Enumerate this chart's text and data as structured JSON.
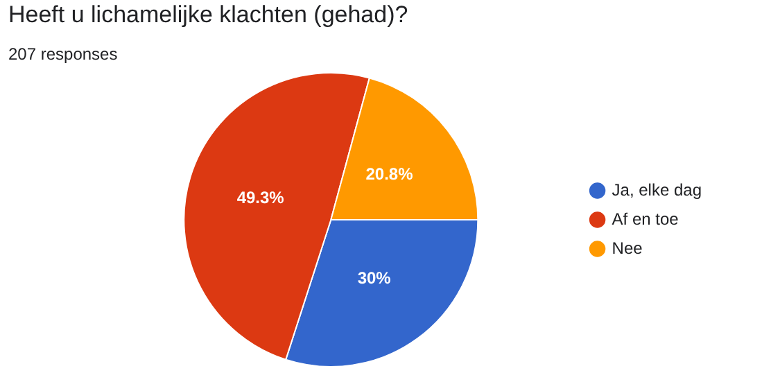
{
  "chart_data": {
    "type": "pie",
    "title": "Heeft u lichamelijke klachten (gehad)?",
    "subtitle": "207 responses",
    "categories": [
      "Ja, elke dag",
      "Af en toe",
      "Nee"
    ],
    "values": [
      30,
      49.3,
      20.8
    ],
    "colors": [
      "#3366cc",
      "#dc3912",
      "#ff9900"
    ],
    "value_labels": [
      "30%",
      "49.3%",
      "20.8%"
    ],
    "legend": "right"
  }
}
